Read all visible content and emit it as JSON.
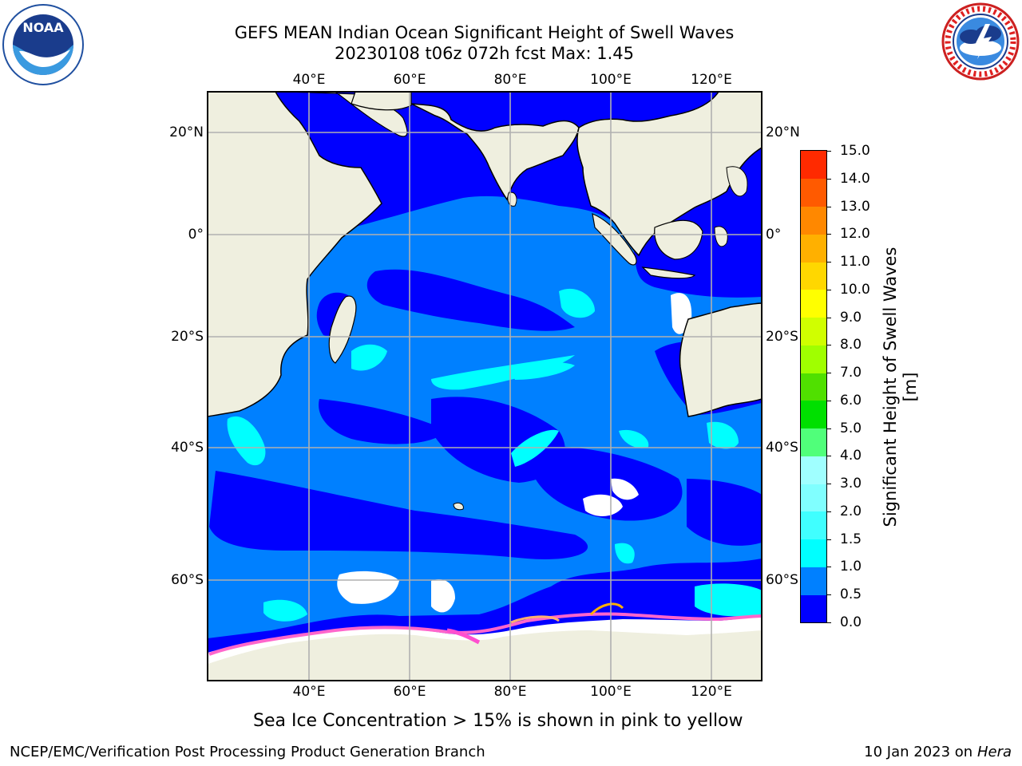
{
  "title": {
    "line1": "GEFS MEAN Indian Ocean Significant Height of Swell Waves",
    "line2": "20230108 t06z 072h fcst   Max: 1.45"
  },
  "logos": {
    "left": {
      "name": "NOAA",
      "text": "NOAA"
    },
    "right": {
      "name": "National Weather Service"
    }
  },
  "map": {
    "lon_labels": [
      "40°E",
      "60°E",
      "80°E",
      "100°E",
      "120°E"
    ],
    "lat_labels": [
      "20°N",
      "0°",
      "20°S",
      "40°S",
      "60°S"
    ],
    "colors": {
      "land": "#efefdf",
      "grid": "#b0b0b0",
      "coast": "#000000",
      "no_data": "#ffffff",
      "sea_ice": "#ff66cc"
    }
  },
  "colorbar": {
    "label": "Significant Height of Swell Waves [m]",
    "ticks": [
      "0.0",
      "0.5",
      "1.0",
      "1.5",
      "2.0",
      "3.0",
      "4.0",
      "5.0",
      "6.0",
      "7.0",
      "8.0",
      "9.0",
      "10.0",
      "11.0",
      "12.0",
      "13.0",
      "14.0",
      "15.0"
    ],
    "colors": [
      "#0000ff",
      "#0080ff",
      "#00ffff",
      "#40ffff",
      "#80ffff",
      "#a0ffff",
      "#50ff7a",
      "#00e000",
      "#50e000",
      "#a0ff00",
      "#d0ff00",
      "#ffff00",
      "#ffd700",
      "#ffb000",
      "#ff8800",
      "#ff5a00",
      "#ff2a00",
      "#ff0000"
    ]
  },
  "note": "Sea Ice Concentration > 15% is shown in pink to yellow",
  "footer": {
    "left": "NCEP/EMC/Verification Post Processing Product Generation Branch",
    "right_prefix": "10 Jan 2023 on ",
    "right_machine": "Hera"
  }
}
